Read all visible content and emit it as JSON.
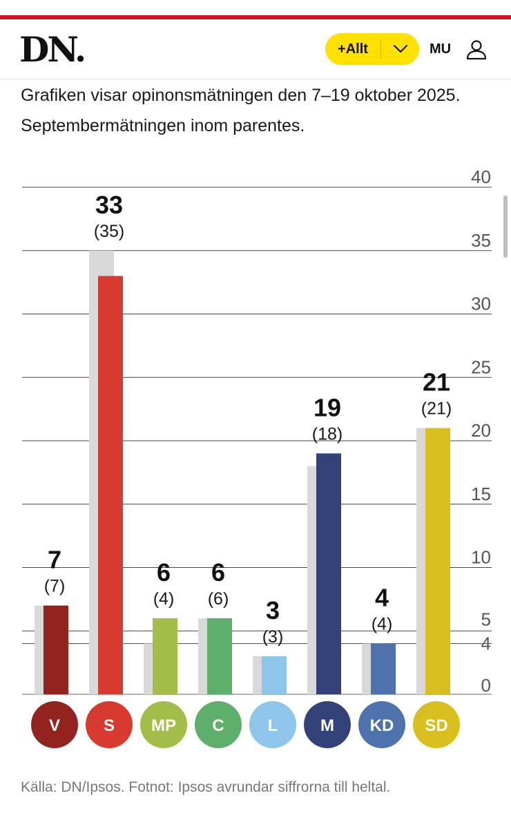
{
  "header": {
    "logo": "DN.",
    "plus_button_label": "+Allt",
    "dropdown_icon": "chevron-down-icon",
    "user_initials": "MU",
    "user_icon": "user-icon",
    "accent_color": "#d6101c",
    "button_color": "#ffe100"
  },
  "description": "Grafiken visar opinonsmätningen den 7–19 oktober 2025. Septembermätningen inom parentes.",
  "footnote": "Källa: DN/Ipsos. Fotnot: Ipsos avrundar siffrorna till heltal.",
  "chart_data": {
    "type": "bar",
    "categories": [
      "V",
      "S",
      "MP",
      "C",
      "L",
      "M",
      "KD",
      "SD"
    ],
    "series": [
      {
        "values": [
          7,
          33,
          6,
          6,
          3,
          19,
          4,
          21
        ]
      },
      {
        "values": [
          7,
          35,
          4,
          6,
          3,
          18,
          4,
          21
        ],
        "labels": [
          "(7)",
          "(35)",
          "(4)",
          "(6)",
          "(3)",
          "(18)",
          "(4)",
          "(21)"
        ]
      }
    ],
    "colors": [
      "#93231f",
      "#d93a2f",
      "#a2bd48",
      "#5faf6c",
      "#8ec5ea",
      "#33437a",
      "#4d72ac",
      "#d8bf1f"
    ],
    "previous_color": "#d9d9d9",
    "y_ticks": [
      "0",
      "4",
      "5",
      "10",
      "15",
      "20",
      "25",
      "30",
      "35",
      "40"
    ],
    "ylim": [
      0,
      40
    ],
    "grid": true,
    "y_axis_position": "right",
    "legend": "none"
  }
}
